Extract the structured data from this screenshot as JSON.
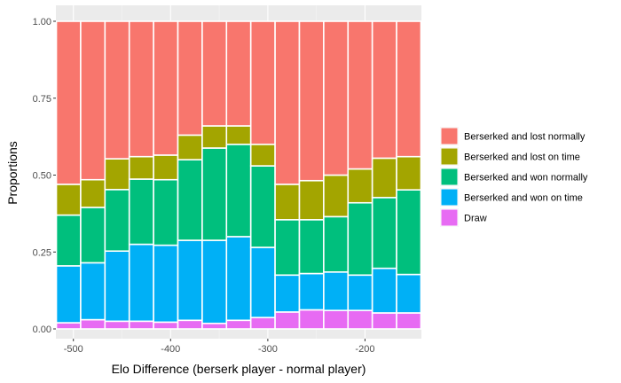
{
  "chart_data": {
    "type": "bar",
    "stacked": true,
    "xlabel": "Elo Difference (berserk player - normal player)",
    "ylabel": "Proportions",
    "x": [
      -505,
      -480,
      -455,
      -430,
      -405,
      -380,
      -355,
      -330,
      -305,
      -280,
      -255,
      -230,
      -205,
      -180,
      -155
    ],
    "x_ticks": [
      -500,
      -400,
      -300,
      -200
    ],
    "xlim": [
      -518,
      -142
    ],
    "ylim": [
      0,
      1
    ],
    "y_ticks": [
      0.0,
      0.25,
      0.5,
      0.75,
      1.0
    ],
    "y_tick_labels": [
      "0.00",
      "0.25",
      "0.50",
      "0.75",
      "1.00"
    ],
    "grid": true,
    "legend_position": "right",
    "series": [
      {
        "name": "Draw",
        "color": "#E76BF3",
        "values": [
          0.02,
          0.03,
          0.025,
          0.025,
          0.022,
          0.028,
          0.018,
          0.028,
          0.037,
          0.055,
          0.062,
          0.06,
          0.06,
          0.052,
          0.052
        ]
      },
      {
        "name": "Berserked and won on time",
        "color": "#00B0F6",
        "values": [
          0.185,
          0.185,
          0.228,
          0.25,
          0.25,
          0.26,
          0.27,
          0.272,
          0.228,
          0.12,
          0.118,
          0.125,
          0.115,
          0.145,
          0.125
        ]
      },
      {
        "name": "Berserked and won normally",
        "color": "#00BF7D",
        "values": [
          0.165,
          0.18,
          0.2,
          0.212,
          0.213,
          0.262,
          0.3,
          0.3,
          0.265,
          0.18,
          0.175,
          0.18,
          0.235,
          0.23,
          0.275
        ]
      },
      {
        "name": "Berserked and lost on time",
        "color": "#A3A500",
        "values": [
          0.1,
          0.09,
          0.1,
          0.073,
          0.08,
          0.08,
          0.072,
          0.06,
          0.07,
          0.115,
          0.127,
          0.135,
          0.11,
          0.128,
          0.108
        ]
      },
      {
        "name": "Berserked and lost normally",
        "color": "#F8766D",
        "values": [
          0.53,
          0.515,
          0.447,
          0.44,
          0.435,
          0.37,
          0.34,
          0.34,
          0.4,
          0.53,
          0.518,
          0.5,
          0.48,
          0.445,
          0.44
        ]
      }
    ],
    "legend_order": [
      "Berserked and lost normally",
      "Berserked and lost on time",
      "Berserked and won normally",
      "Berserked and won on time",
      "Draw"
    ]
  },
  "colors": {
    "panel_background": "#EBEBEB",
    "grid_major": "#FFFFFF",
    "grid_minor": "#F5F5F5",
    "bar_outline": "#FFFFFF"
  }
}
